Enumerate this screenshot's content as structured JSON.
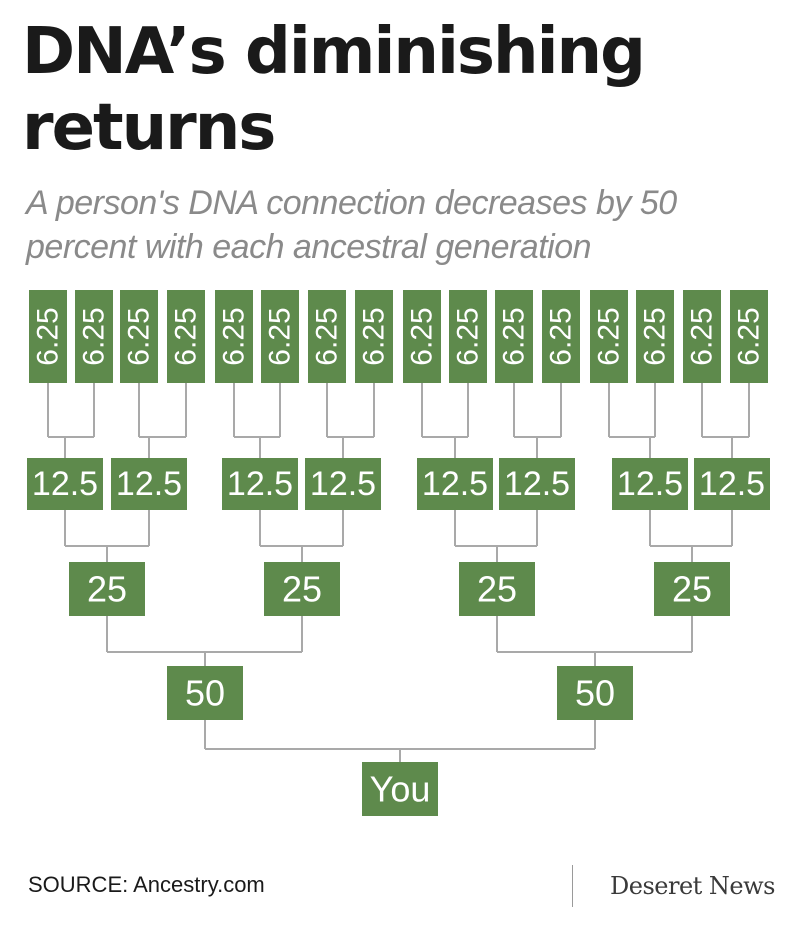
{
  "title": "DNA’s diminishing returns",
  "subtitle": "A person's DNA connection decreases by 50 percent with each ancestral generation",
  "source": "SOURCE: Ancestry.com",
  "logo_text": "Deseret News",
  "colors": {
    "node_fill": "#5e8a4c",
    "node_text": "#ffffff",
    "connector": "#a9a9a9"
  },
  "tree": {
    "root": "You",
    "generations": [
      {
        "level": 1,
        "values": [
          "50",
          "50"
        ]
      },
      {
        "level": 2,
        "values": [
          "25",
          "25",
          "25",
          "25"
        ]
      },
      {
        "level": 3,
        "values": [
          "12.5",
          "12.5",
          "12.5",
          "12.5",
          "12.5",
          "12.5",
          "12.5",
          "12.5"
        ]
      },
      {
        "level": 4,
        "values": [
          "6.25",
          "6.25",
          "6.25",
          "6.25",
          "6.25",
          "6.25",
          "6.25",
          "6.25",
          "6.25",
          "6.25",
          "6.25",
          "6.25",
          "6.25",
          "6.25",
          "6.25",
          "6.25"
        ]
      }
    ]
  }
}
